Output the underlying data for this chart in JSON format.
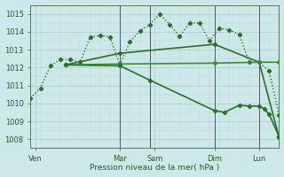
{
  "bg_color": "#cce8e8",
  "grid_major_color": "#aacccc",
  "grid_minor_color": "#bbdddd",
  "title": "Pression niveau de la mer( hPa )",
  "ylim": [
    1007.5,
    1015.5
  ],
  "xlim": [
    0,
    25
  ],
  "yticks": [
    1008,
    1009,
    1010,
    1011,
    1012,
    1013,
    1014,
    1015
  ],
  "day_labels": [
    "Ven",
    "Mar",
    "Sam",
    "Dim",
    "Lun"
  ],
  "day_positions": [
    0.5,
    9,
    12.5,
    18.5,
    23
  ],
  "vlines_x": [
    9,
    12,
    18.5,
    23
  ],
  "vline_color": "#555566",
  "vline_lw": 0.7,
  "lines": [
    {
      "x": [
        0,
        1,
        2,
        3,
        4,
        5,
        6,
        7,
        8,
        9,
        10,
        11,
        12,
        13,
        14,
        15,
        16,
        17,
        18,
        19,
        20,
        21,
        22,
        23,
        24,
        25
      ],
      "y": [
        1010.3,
        1010.85,
        1012.1,
        1012.45,
        1012.45,
        1012.3,
        1013.7,
        1013.8,
        1013.7,
        1012.15,
        1013.45,
        1014.05,
        1014.4,
        1015.0,
        1014.4,
        1013.75,
        1014.5,
        1014.5,
        1013.5,
        1014.2,
        1014.1,
        1013.85,
        1012.3,
        1012.3,
        1011.8,
        1009.35
      ],
      "color": "#2d6e2d",
      "lw": 1.0,
      "marker": "D",
      "ms": 2.2,
      "ls": ":"
    },
    {
      "x": [
        3.5,
        9,
        18.5,
        23,
        25
      ],
      "y": [
        1012.15,
        1012.8,
        1013.3,
        1012.3,
        1008.1
      ],
      "color": "#2d6e2d",
      "lw": 1.2,
      "marker": "D",
      "ms": 2.2,
      "ls": "-"
    },
    {
      "x": [
        3.5,
        9,
        18.5,
        23,
        25
      ],
      "y": [
        1012.15,
        1012.2,
        1012.25,
        1012.3,
        1012.3
      ],
      "color": "#3d8a3d",
      "lw": 1.2,
      "marker": "D",
      "ms": 2.2,
      "ls": "-"
    },
    {
      "x": [
        3.5,
        9,
        12,
        18.5,
        19.5,
        21,
        22,
        23,
        23.5,
        24,
        25
      ],
      "y": [
        1012.15,
        1012.1,
        1011.3,
        1009.6,
        1009.5,
        1009.9,
        1009.85,
        1009.85,
        1009.7,
        1009.4,
        1008.15
      ],
      "color": "#2d6e2d",
      "lw": 1.2,
      "marker": "D",
      "ms": 2.2,
      "ls": "-"
    }
  ]
}
